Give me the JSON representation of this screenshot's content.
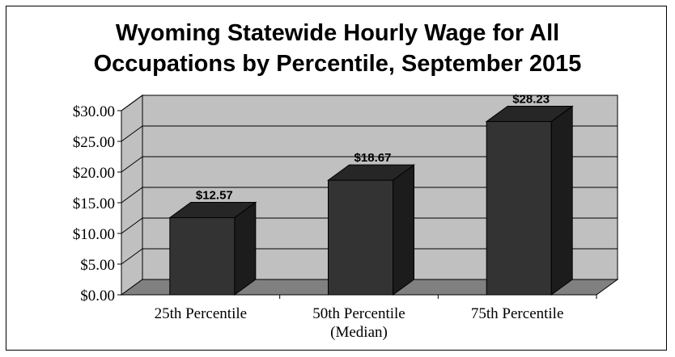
{
  "chart_data": {
    "type": "bar",
    "title": [
      "Wyoming Statewide Hourly Wage for All",
      "Occupations by Percentile, September 2015"
    ],
    "categories": [
      [
        "25th Percentile"
      ],
      [
        "50th Percentile",
        "(Median)"
      ],
      [
        "75th Percentile"
      ]
    ],
    "values": [
      12.57,
      18.67,
      28.23
    ],
    "data_labels": [
      "$12.57",
      "$18.67",
      "$28.23"
    ],
    "ylim": [
      0,
      30
    ],
    "yticks": [
      0,
      5,
      10,
      15,
      20,
      25,
      30
    ],
    "ytick_labels": [
      "$0.00",
      "$5.00",
      "$10.00",
      "$15.00",
      "$20.00",
      "$25.00",
      "$30.00"
    ],
    "xlabel": "",
    "ylabel": "",
    "grid": true,
    "legend": "none",
    "colors": {
      "bar_front": "#333333",
      "bar_top": "#262626",
      "bar_side": "#1c1c1c",
      "back_wall": "#c0c0c0",
      "floor": "#808080",
      "gridline": "#000000"
    }
  }
}
